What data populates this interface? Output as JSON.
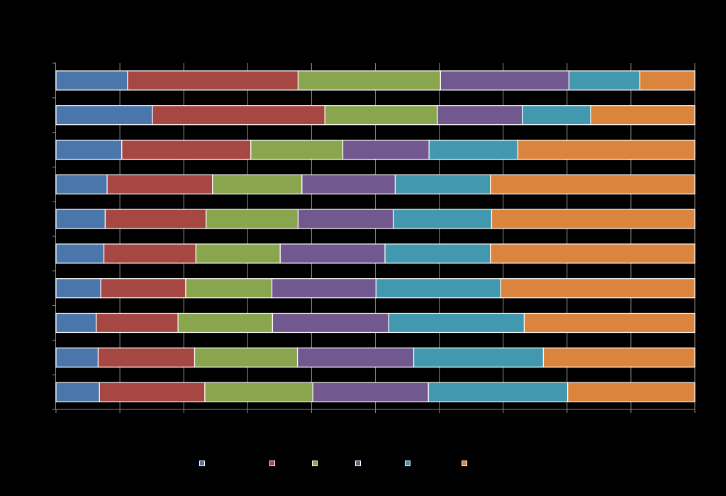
{
  "chart_data": {
    "type": "bar",
    "orientation": "horizontal",
    "stacked": "percent",
    "title": "",
    "xlabel": "",
    "ylabel": "",
    "xlim": [
      0,
      100
    ],
    "grid": true,
    "legend_position": "bottom",
    "categories": [
      "",
      "",
      "",
      "",
      "",
      "",
      "",
      "",
      "",
      ""
    ],
    "series": [
      {
        "color": "#4a76ab",
        "values": [
          11.2,
          15.1,
          10.3,
          8.0,
          7.7,
          7.5,
          7.0,
          6.3,
          6.6,
          6.8
        ]
      },
      {
        "color": "#a74744",
        "values": [
          26.7,
          27.0,
          20.2,
          16.5,
          15.8,
          14.4,
          13.3,
          12.8,
          15.1,
          16.5
        ]
      },
      {
        "color": "#89a54e",
        "values": [
          22.3,
          17.6,
          14.4,
          14.0,
          14.4,
          13.2,
          13.5,
          14.8,
          16.1,
          16.9
        ]
      },
      {
        "color": "#71588f",
        "values": [
          20.1,
          13.3,
          13.5,
          14.6,
          14.9,
          16.4,
          16.3,
          18.2,
          18.2,
          18.1
        ]
      },
      {
        "color": "#4198af",
        "values": [
          11.1,
          10.7,
          13.9,
          14.9,
          15.4,
          16.5,
          19.5,
          21.2,
          20.3,
          21.8
        ]
      },
      {
        "color": "#db843d",
        "values": [
          8.6,
          16.3,
          27.7,
          32.0,
          31.8,
          32.0,
          30.4,
          26.7,
          23.7,
          19.9
        ]
      }
    ]
  },
  "colors": {
    "background": "#000000",
    "gridline": "#8c8c8c",
    "axis": "#8c8c8c",
    "bar_border": "#ffffff"
  }
}
